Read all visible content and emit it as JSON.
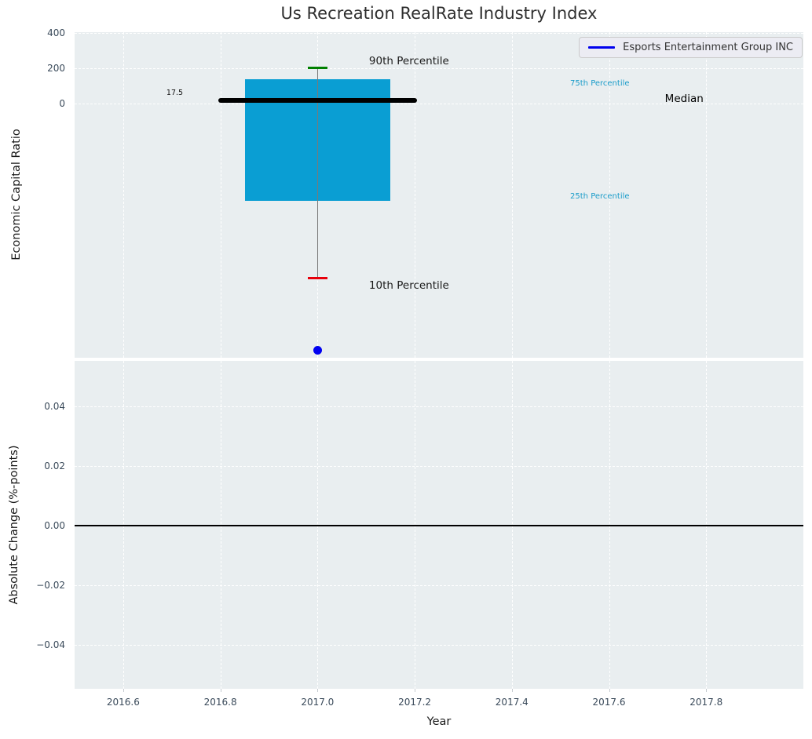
{
  "figure": {
    "title": "Us Recreation RealRate Industry Index",
    "xlabel": "Year"
  },
  "chart_data": [
    {
      "type": "box",
      "title": "Us Recreation RealRate Industry Index",
      "ylabel": "Economic Capital Ratio",
      "xlim": [
        2016.5,
        2018.0
      ],
      "ylim": [
        -1440,
        404
      ],
      "grid": true,
      "yticks": [
        {
          "value": 0,
          "label": "0"
        },
        {
          "value": 200,
          "label": "200"
        },
        {
          "value": 400,
          "label": "400"
        }
      ],
      "series": {
        "year": 2017.0,
        "p90": 200,
        "p75": 138,
        "median": 17.5,
        "p25": -550,
        "p10": -990,
        "box_halfwidth_years": 0.15,
        "median_halfwidth_years": 0.2,
        "cap_halfwidth_years": 0.02,
        "company_point": {
          "name": "Esports Entertainment Group INC",
          "year": 2017.0,
          "value": -1400,
          "color": "#0101f0"
        }
      },
      "annotations": [
        {
          "text": "90th Percentile",
          "x": 2017.106,
          "y": 240,
          "color": "#1a1a1a",
          "size": "lg"
        },
        {
          "text": "10th Percentile",
          "x": 2017.106,
          "y": -1031,
          "color": "#1a1a1a",
          "size": "lg"
        },
        {
          "text": "75th Percentile",
          "x": 2017.52,
          "y": 111,
          "color": "#1a9cc9",
          "size": "sm"
        },
        {
          "text": "25th Percentile",
          "x": 2017.52,
          "y": -525,
          "color": "#1a9cc9",
          "size": "sm"
        },
        {
          "text": "Median",
          "x": 2017.715,
          "y": 26,
          "color": "#000000",
          "size": "lg"
        },
        {
          "text": "17.5",
          "x": 2016.689,
          "y": 57,
          "color": "#111111",
          "size": "xs"
        }
      ],
      "legend": {
        "label": "Esports Entertainment Group INC",
        "line_color": "#0000ee",
        "location": "upper right"
      },
      "colors": {
        "box_fill": "#0a9ed3",
        "median_line": "#000000",
        "whisker": "#7a7a7a",
        "p90_cap": "#008000",
        "p10_cap": "#e8000b"
      }
    },
    {
      "type": "line",
      "ylabel": "Absolute Change (%-points)",
      "xlabel": "Year",
      "xlim": [
        2016.5,
        2018.0
      ],
      "ylim": [
        -0.0547,
        0.0553
      ],
      "grid": true,
      "zero_line": 0.0,
      "series": [],
      "yticks": [
        {
          "value": 0.04,
          "label": "0.04"
        },
        {
          "value": 0.02,
          "label": "0.02"
        },
        {
          "value": 0.0,
          "label": "0.00"
        },
        {
          "value": -0.02,
          "label": "−0.02"
        },
        {
          "value": -0.04,
          "label": "−0.04"
        }
      ],
      "xticks": [
        {
          "value": 2016.6,
          "label": "2016.6"
        },
        {
          "value": 2016.8,
          "label": "2016.8"
        },
        {
          "value": 2017.0,
          "label": "2017.0"
        },
        {
          "value": 2017.2,
          "label": "2017.2"
        },
        {
          "value": 2017.4,
          "label": "2017.4"
        },
        {
          "value": 2017.6,
          "label": "2017.6"
        },
        {
          "value": 2017.8,
          "label": "2017.8"
        }
      ]
    }
  ]
}
